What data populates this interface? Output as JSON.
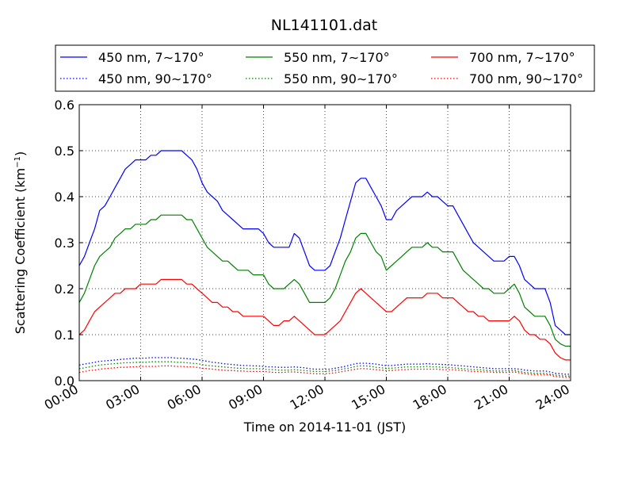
{
  "chart_data": {
    "type": "line",
    "title": "NL141101.dat",
    "xlabel": "Time on 2014-11-01 (JST)",
    "ylabel": "Scattering Coefficient (km",
    "ylabel_sup": "−1",
    "ylabel_close": ")",
    "xlim": [
      0,
      24
    ],
    "ylim": [
      0,
      0.6
    ],
    "x_ticks": [
      0,
      3,
      6,
      9,
      12,
      15,
      18,
      21,
      24
    ],
    "x_tick_labels": [
      "00:00",
      "03:00",
      "06:00",
      "09:00",
      "12:00",
      "15:00",
      "18:00",
      "21:00",
      "24:00"
    ],
    "y_ticks": [
      0,
      0.1,
      0.2,
      0.3,
      0.4,
      0.5,
      0.6
    ],
    "y_tick_labels": [
      "0.0",
      "0.1",
      "0.2",
      "0.3",
      "0.4",
      "0.5",
      "0.6"
    ],
    "grid": true,
    "legend_position": "top, above plot, 3 columns",
    "x": [
      0.0,
      0.25,
      0.5,
      0.75,
      1.0,
      1.25,
      1.5,
      1.75,
      2.0,
      2.25,
      2.5,
      2.75,
      3.0,
      3.25,
      3.5,
      3.75,
      4.0,
      4.25,
      4.5,
      4.75,
      5.0,
      5.25,
      5.5,
      5.75,
      6.0,
      6.25,
      6.5,
      6.75,
      7.0,
      7.25,
      7.5,
      7.75,
      8.0,
      8.25,
      8.5,
      8.75,
      9.0,
      9.25,
      9.5,
      9.75,
      10.0,
      10.25,
      10.5,
      10.75,
      11.0,
      11.25,
      11.5,
      11.75,
      12.0,
      12.25,
      12.5,
      12.75,
      13.0,
      13.25,
      13.5,
      13.75,
      14.0,
      14.25,
      14.5,
      14.75,
      15.0,
      15.25,
      15.5,
      15.75,
      16.0,
      16.25,
      16.5,
      16.75,
      17.0,
      17.25,
      17.5,
      17.75,
      18.0,
      18.25,
      18.5,
      18.75,
      19.0,
      19.25,
      19.5,
      19.75,
      20.0,
      20.25,
      20.5,
      20.75,
      21.0,
      21.25,
      21.5,
      21.75,
      22.0,
      22.25,
      22.5,
      22.75,
      23.0,
      23.25,
      23.5,
      23.75,
      24.0
    ],
    "series": [
      {
        "name": "450 nm, 7∼170°",
        "color": "#0000ff",
        "style": "solid",
        "values": [
          0.25,
          0.27,
          0.3,
          0.33,
          0.37,
          0.38,
          0.4,
          0.42,
          0.44,
          0.46,
          0.47,
          0.48,
          0.48,
          0.48,
          0.49,
          0.49,
          0.5,
          0.5,
          0.5,
          0.5,
          0.5,
          0.49,
          0.48,
          0.46,
          0.43,
          0.41,
          0.4,
          0.39,
          0.37,
          0.36,
          0.35,
          0.34,
          0.33,
          0.33,
          0.33,
          0.33,
          0.32,
          0.3,
          0.29,
          0.29,
          0.29,
          0.29,
          0.32,
          0.31,
          0.28,
          0.25,
          0.24,
          0.24,
          0.24,
          0.25,
          0.28,
          0.31,
          0.35,
          0.39,
          0.43,
          0.44,
          0.44,
          0.42,
          0.4,
          0.38,
          0.35,
          0.35,
          0.37,
          0.38,
          0.39,
          0.4,
          0.4,
          0.4,
          0.41,
          0.4,
          0.4,
          0.39,
          0.38,
          0.38,
          0.36,
          0.34,
          0.32,
          0.3,
          0.29,
          0.28,
          0.27,
          0.26,
          0.26,
          0.26,
          0.27,
          0.27,
          0.25,
          0.22,
          0.21,
          0.2,
          0.2,
          0.2,
          0.17,
          0.12,
          0.11,
          0.1,
          0.1
        ]
      },
      {
        "name": "450 nm, 90∼170°",
        "color": "#0000ff",
        "style": "dotted",
        "values": [
          0.034,
          0.036,
          0.038,
          0.04,
          0.042,
          0.043,
          0.044,
          0.045,
          0.046,
          0.047,
          0.048,
          0.049,
          0.049,
          0.049,
          0.05,
          0.05,
          0.05,
          0.05,
          0.05,
          0.049,
          0.049,
          0.048,
          0.047,
          0.046,
          0.044,
          0.042,
          0.04,
          0.039,
          0.037,
          0.036,
          0.035,
          0.034,
          0.033,
          0.033,
          0.032,
          0.032,
          0.031,
          0.03,
          0.03,
          0.029,
          0.029,
          0.029,
          0.03,
          0.029,
          0.028,
          0.026,
          0.025,
          0.025,
          0.025,
          0.025,
          0.027,
          0.029,
          0.031,
          0.034,
          0.037,
          0.038,
          0.038,
          0.037,
          0.036,
          0.034,
          0.033,
          0.033,
          0.034,
          0.035,
          0.036,
          0.036,
          0.036,
          0.036,
          0.037,
          0.036,
          0.036,
          0.035,
          0.035,
          0.034,
          0.033,
          0.032,
          0.031,
          0.03,
          0.029,
          0.028,
          0.027,
          0.026,
          0.026,
          0.026,
          0.026,
          0.026,
          0.025,
          0.023,
          0.022,
          0.021,
          0.021,
          0.021,
          0.019,
          0.016,
          0.015,
          0.014,
          0.014
        ]
      },
      {
        "name": "550 nm, 7∼170°",
        "color": "#008000",
        "style": "solid",
        "values": [
          0.17,
          0.19,
          0.22,
          0.25,
          0.27,
          0.28,
          0.29,
          0.31,
          0.32,
          0.33,
          0.33,
          0.34,
          0.34,
          0.34,
          0.35,
          0.35,
          0.36,
          0.36,
          0.36,
          0.36,
          0.36,
          0.35,
          0.35,
          0.33,
          0.31,
          0.29,
          0.28,
          0.27,
          0.26,
          0.26,
          0.25,
          0.24,
          0.24,
          0.24,
          0.23,
          0.23,
          0.23,
          0.21,
          0.2,
          0.2,
          0.2,
          0.21,
          0.22,
          0.21,
          0.19,
          0.17,
          0.17,
          0.17,
          0.17,
          0.18,
          0.2,
          0.23,
          0.26,
          0.28,
          0.31,
          0.32,
          0.32,
          0.3,
          0.28,
          0.27,
          0.24,
          0.25,
          0.26,
          0.27,
          0.28,
          0.29,
          0.29,
          0.29,
          0.3,
          0.29,
          0.29,
          0.28,
          0.28,
          0.28,
          0.26,
          0.24,
          0.23,
          0.22,
          0.21,
          0.2,
          0.2,
          0.19,
          0.19,
          0.19,
          0.2,
          0.21,
          0.19,
          0.16,
          0.15,
          0.14,
          0.14,
          0.14,
          0.12,
          0.09,
          0.08,
          0.075,
          0.075
        ]
      },
      {
        "name": "550 nm, 90∼170°",
        "color": "#008000",
        "style": "dotted",
        "values": [
          0.026,
          0.028,
          0.03,
          0.032,
          0.034,
          0.035,
          0.036,
          0.037,
          0.038,
          0.039,
          0.039,
          0.04,
          0.04,
          0.04,
          0.041,
          0.041,
          0.041,
          0.041,
          0.041,
          0.04,
          0.04,
          0.039,
          0.038,
          0.037,
          0.035,
          0.033,
          0.032,
          0.031,
          0.03,
          0.029,
          0.028,
          0.027,
          0.027,
          0.026,
          0.026,
          0.026,
          0.025,
          0.024,
          0.024,
          0.023,
          0.023,
          0.023,
          0.024,
          0.023,
          0.022,
          0.021,
          0.02,
          0.02,
          0.02,
          0.021,
          0.022,
          0.024,
          0.026,
          0.028,
          0.031,
          0.032,
          0.032,
          0.031,
          0.029,
          0.028,
          0.027,
          0.027,
          0.028,
          0.029,
          0.03,
          0.03,
          0.03,
          0.03,
          0.031,
          0.03,
          0.03,
          0.029,
          0.029,
          0.028,
          0.027,
          0.026,
          0.025,
          0.024,
          0.024,
          0.023,
          0.022,
          0.021,
          0.021,
          0.021,
          0.022,
          0.022,
          0.02,
          0.018,
          0.017,
          0.016,
          0.016,
          0.016,
          0.014,
          0.012,
          0.011,
          0.01,
          0.01
        ]
      },
      {
        "name": "700 nm, 7∼170°",
        "color": "#ff0000",
        "style": "solid",
        "values": [
          0.1,
          0.11,
          0.13,
          0.15,
          0.16,
          0.17,
          0.18,
          0.19,
          0.19,
          0.2,
          0.2,
          0.2,
          0.21,
          0.21,
          0.21,
          0.21,
          0.22,
          0.22,
          0.22,
          0.22,
          0.22,
          0.21,
          0.21,
          0.2,
          0.19,
          0.18,
          0.17,
          0.17,
          0.16,
          0.16,
          0.15,
          0.15,
          0.14,
          0.14,
          0.14,
          0.14,
          0.14,
          0.13,
          0.12,
          0.12,
          0.13,
          0.13,
          0.14,
          0.13,
          0.12,
          0.11,
          0.1,
          0.1,
          0.1,
          0.11,
          0.12,
          0.13,
          0.15,
          0.17,
          0.19,
          0.2,
          0.19,
          0.18,
          0.17,
          0.16,
          0.15,
          0.15,
          0.16,
          0.17,
          0.18,
          0.18,
          0.18,
          0.18,
          0.19,
          0.19,
          0.19,
          0.18,
          0.18,
          0.18,
          0.17,
          0.16,
          0.15,
          0.15,
          0.14,
          0.14,
          0.13,
          0.13,
          0.13,
          0.13,
          0.13,
          0.14,
          0.13,
          0.11,
          0.1,
          0.1,
          0.09,
          0.09,
          0.08,
          0.06,
          0.05,
          0.045,
          0.045
        ]
      },
      {
        "name": "700 nm, 90∼170°",
        "color": "#ff0000",
        "style": "dotted",
        "values": [
          0.018,
          0.02,
          0.022,
          0.023,
          0.025,
          0.026,
          0.027,
          0.028,
          0.029,
          0.029,
          0.03,
          0.03,
          0.031,
          0.031,
          0.031,
          0.031,
          0.032,
          0.032,
          0.032,
          0.031,
          0.031,
          0.03,
          0.03,
          0.029,
          0.027,
          0.026,
          0.025,
          0.024,
          0.023,
          0.022,
          0.022,
          0.021,
          0.021,
          0.02,
          0.02,
          0.02,
          0.02,
          0.019,
          0.018,
          0.018,
          0.018,
          0.019,
          0.019,
          0.018,
          0.017,
          0.016,
          0.015,
          0.015,
          0.015,
          0.016,
          0.017,
          0.019,
          0.021,
          0.023,
          0.025,
          0.026,
          0.026,
          0.025,
          0.024,
          0.023,
          0.022,
          0.022,
          0.023,
          0.024,
          0.024,
          0.025,
          0.025,
          0.025,
          0.025,
          0.025,
          0.025,
          0.024,
          0.024,
          0.024,
          0.023,
          0.022,
          0.021,
          0.02,
          0.02,
          0.019,
          0.019,
          0.018,
          0.018,
          0.018,
          0.018,
          0.019,
          0.017,
          0.015,
          0.014,
          0.013,
          0.013,
          0.013,
          0.012,
          0.009,
          0.008,
          0.007,
          0.007
        ]
      }
    ]
  }
}
